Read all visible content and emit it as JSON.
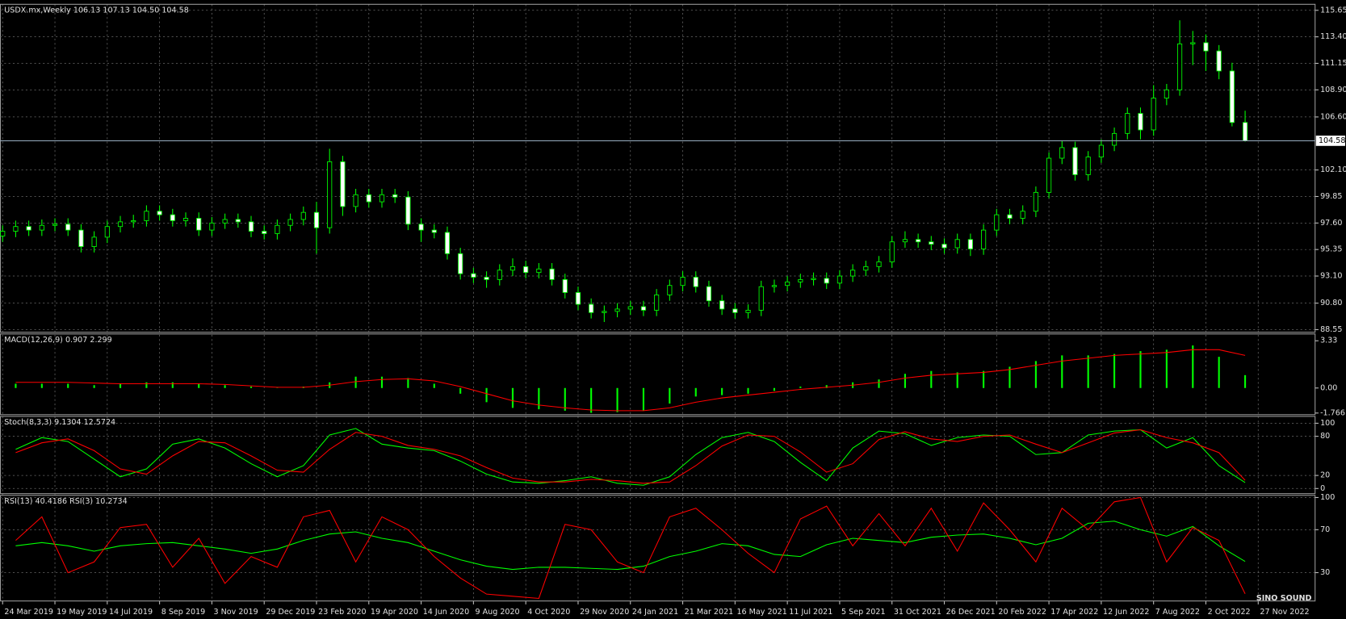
{
  "chart_data": [
    {
      "type": "candlestick",
      "title": "USDX.mx,Weekly 106.13 107.13 104.50 104.58",
      "x": [
        0,
        2,
        4,
        6,
        8,
        10,
        12,
        14,
        16,
        18,
        20,
        22,
        24,
        26,
        28,
        30,
        32,
        34,
        36,
        38,
        40,
        42,
        44,
        46,
        48,
        50,
        52,
        54,
        56,
        58,
        60,
        62,
        64,
        66,
        68,
        70,
        72,
        74,
        76,
        78,
        80,
        82,
        84,
        86,
        88,
        90,
        92,
        94,
        96,
        98,
        100,
        102,
        104,
        106,
        108,
        110,
        112,
        114,
        116,
        118,
        120,
        122,
        124,
        126,
        128,
        130,
        132,
        134,
        136,
        138,
        140,
        142,
        144,
        146,
        148,
        150,
        152,
        154,
        156,
        158,
        160,
        162,
        164,
        166,
        168,
        170,
        172,
        174,
        176,
        178,
        180,
        182,
        184,
        186,
        188,
        190
      ],
      "open": [
        96.5,
        96.9,
        97.3,
        97.0,
        97.4,
        97.5,
        97.0,
        95.6,
        96.4,
        97.3,
        97.7,
        97.8,
        98.6,
        98.3,
        97.8,
        98.0,
        97.0,
        97.6,
        97.9,
        97.7,
        96.9,
        96.7,
        97.4,
        97.9,
        98.5,
        97.2,
        102.8,
        99.0,
        100.0,
        99.4,
        100.0,
        99.8,
        97.5,
        97.0,
        96.8,
        95.0,
        93.3,
        93.0,
        92.8,
        93.6,
        93.9,
        93.4,
        93.7,
        92.8,
        91.7,
        90.7,
        90.0,
        90.1,
        90.3,
        90.5,
        90.2,
        91.5,
        92.3,
        93.0,
        92.2,
        91.0,
        90.3,
        90.0,
        90.2,
        92.2,
        92.3,
        92.6,
        92.8,
        92.9,
        92.5,
        93.1,
        93.6,
        93.9,
        94.3,
        96.0,
        96.2,
        96.0,
        95.8,
        95.5,
        96.2,
        95.4,
        97.0,
        98.3,
        98.0,
        98.6,
        100.2,
        103.1,
        104.0,
        101.7,
        103.2,
        104.2,
        105.2,
        106.9,
        105.5,
        108.2,
        108.9,
        112.8,
        112.9,
        112.2,
        110.5,
        106.13
      ],
      "high": [
        97.4,
        97.8,
        97.8,
        97.9,
        98.0,
        98.0,
        97.5,
        96.9,
        97.8,
        98.2,
        98.3,
        99.1,
        99.1,
        98.8,
        98.5,
        98.5,
        98.1,
        98.4,
        98.4,
        98.2,
        97.4,
        97.9,
        98.4,
        99.0,
        99.4,
        103.9,
        103.3,
        100.5,
        100.5,
        100.5,
        100.5,
        100.3,
        98.0,
        97.5,
        97.3,
        95.5,
        93.8,
        93.5,
        94.1,
        94.6,
        94.4,
        94.2,
        94.2,
        93.3,
        92.2,
        91.2,
        90.6,
        90.8,
        91.0,
        91.0,
        92.0,
        92.8,
        93.5,
        93.5,
        92.7,
        91.5,
        90.8,
        90.7,
        92.7,
        92.8,
        93.1,
        93.3,
        93.4,
        93.4,
        93.6,
        94.1,
        94.4,
        94.8,
        96.5,
        96.9,
        96.7,
        96.5,
        96.3,
        96.7,
        96.7,
        97.5,
        98.8,
        98.8,
        99.1,
        100.7,
        103.6,
        104.6,
        104.5,
        103.7,
        104.7,
        105.7,
        107.4,
        107.4,
        109.3,
        109.4,
        114.8,
        113.9,
        113.6,
        112.7,
        111.2,
        107.13
      ],
      "low": [
        96.0,
        96.4,
        96.5,
        96.5,
        96.9,
        96.5,
        95.1,
        95.1,
        95.9,
        96.8,
        97.2,
        97.3,
        97.8,
        97.3,
        97.3,
        96.5,
        96.5,
        97.1,
        97.2,
        96.4,
        96.2,
        96.2,
        96.9,
        97.4,
        95.0,
        96.7,
        98.2,
        98.5,
        98.9,
        98.9,
        99.3,
        97.0,
        96.0,
        96.3,
        94.5,
        92.8,
        92.5,
        92.1,
        92.3,
        93.1,
        92.9,
        92.9,
        92.3,
        91.2,
        90.2,
        89.5,
        89.2,
        89.6,
        89.8,
        89.7,
        89.7,
        91.0,
        91.8,
        91.7,
        90.5,
        89.8,
        89.5,
        89.5,
        89.7,
        91.7,
        91.8,
        92.1,
        92.3,
        92.0,
        92.0,
        92.6,
        93.1,
        93.4,
        93.8,
        95.5,
        95.5,
        95.3,
        95.0,
        95.0,
        94.8,
        94.9,
        96.5,
        97.5,
        97.5,
        98.1,
        99.7,
        102.6,
        101.2,
        101.2,
        102.7,
        103.7,
        104.7,
        104.7,
        105.0,
        107.6,
        108.4,
        111.0,
        110.5,
        109.8,
        105.8,
        104.5
      ],
      "close": [
        96.9,
        97.3,
        97.0,
        97.4,
        97.5,
        97.0,
        95.6,
        96.4,
        97.3,
        97.7,
        97.8,
        98.6,
        98.3,
        97.8,
        98.0,
        97.0,
        97.6,
        97.9,
        97.7,
        96.9,
        96.7,
        97.4,
        97.9,
        98.5,
        97.2,
        102.8,
        99.0,
        100.0,
        99.4,
        100.0,
        99.8,
        97.5,
        97.0,
        96.8,
        95.0,
        93.3,
        93.0,
        92.8,
        93.6,
        93.9,
        93.4,
        93.7,
        92.8,
        91.7,
        90.7,
        90.0,
        90.1,
        90.3,
        90.5,
        90.2,
        91.5,
        92.3,
        93.0,
        92.2,
        91.0,
        90.3,
        90.0,
        90.2,
        92.2,
        92.3,
        92.6,
        92.8,
        92.9,
        92.5,
        93.1,
        93.6,
        93.9,
        94.3,
        96.0,
        96.2,
        96.0,
        95.8,
        95.5,
        96.2,
        95.4,
        97.0,
        98.3,
        98.0,
        98.6,
        100.2,
        103.1,
        104.0,
        101.7,
        103.2,
        104.2,
        105.2,
        106.9,
        105.5,
        108.2,
        108.9,
        112.8,
        112.9,
        112.2,
        110.5,
        106.13,
        104.58
      ],
      "up_color": "#000000",
      "down_color": "#ffffff",
      "wick_color": "#00ff00",
      "xlim": [
        -0.4,
        200.7
      ],
      "ylim": [
        88.33,
        116.16
      ],
      "xticks": [
        {
          "value": 0,
          "label": "24 Mar 2019"
        },
        {
          "value": 8,
          "label": "19 May 2019"
        },
        {
          "value": 16,
          "label": "14 Jul 2019"
        },
        {
          "value": 24,
          "label": "8 Sep 2019"
        },
        {
          "value": 32,
          "label": "3 Nov 2019"
        },
        {
          "value": 40,
          "label": "29 Dec 2019"
        },
        {
          "value": 48,
          "label": "23 Feb 2020"
        },
        {
          "value": 56,
          "label": "19 Apr 2020"
        },
        {
          "value": 64,
          "label": "14 Jun 2020"
        },
        {
          "value": 72,
          "label": "9 Aug 2020"
        },
        {
          "value": 80,
          "label": "4 Oct 2020"
        },
        {
          "value": 88,
          "label": "29 Nov 2020"
        },
        {
          "value": 96,
          "label": "24 Jan 2021"
        },
        {
          "value": 104,
          "label": "21 Mar 2021"
        },
        {
          "value": 112,
          "label": "16 May 2021"
        },
        {
          "value": 120,
          "label": "11 Jul 2021"
        },
        {
          "value": 128,
          "label": "5 Sep 2021"
        },
        {
          "value": 136,
          "label": "31 Oct 2021"
        },
        {
          "value": 144,
          "label": "26 Dec 2021"
        },
        {
          "value": 152,
          "label": "20 Feb 2022"
        },
        {
          "value": 160,
          "label": "17 Apr 2022"
        },
        {
          "value": 168,
          "label": "12 Jun 2022"
        },
        {
          "value": 176,
          "label": "7 Aug 2022"
        },
        {
          "value": 184,
          "label": "2 Oct 2022"
        },
        {
          "value": 192,
          "label": "27 Nov 2022"
        }
      ],
      "yticks": [
        115.65,
        {
          "value": 113.4,
          "label": "113.40"
        },
        111.15,
        {
          "value": 108.9,
          "label": "108.90"
        },
        {
          "value": 106.6,
          "label": "106.60"
        },
        {
          "value": 102.1,
          "label": "102.10"
        },
        99.85,
        {
          "value": 97.6,
          "label": "97.60"
        },
        95.35,
        {
          "value": 93.1,
          "label": "93.10"
        },
        {
          "value": 90.8,
          "label": "90.80"
        },
        88.55
      ],
      "price_line": {
        "value": 104.58,
        "label": "104.58"
      },
      "grid": true
    },
    {
      "type": "macd",
      "title": "MACD(12,26,9) 0.907 2.299",
      "x": [
        2,
        6,
        10,
        14,
        18,
        22,
        26,
        30,
        34,
        38,
        42,
        46,
        50,
        54,
        58,
        62,
        66,
        70,
        74,
        78,
        82,
        86,
        90,
        94,
        98,
        102,
        106,
        110,
        114,
        118,
        122,
        126,
        130,
        134,
        138,
        142,
        146,
        150,
        154,
        158,
        162,
        166,
        170,
        174,
        178,
        182,
        186,
        190
      ],
      "series": [
        {
          "style": "histogram",
          "color": "#00ff00",
          "values": [
            0.3,
            0.3,
            0.3,
            0.2,
            0.3,
            0.4,
            0.4,
            0.3,
            0.2,
            0.1,
            0.02,
            0.1,
            0.4,
            0.8,
            0.8,
            0.7,
            0.3,
            -0.4,
            -1.0,
            -1.4,
            -1.5,
            -1.6,
            -1.75,
            -1.7,
            -1.6,
            -1.1,
            -0.6,
            -0.5,
            -0.4,
            -0.2,
            0.1,
            0.2,
            0.4,
            0.6,
            1.0,
            1.2,
            1.1,
            1.2,
            1.5,
            1.9,
            2.3,
            2.3,
            2.4,
            2.6,
            2.7,
            3.0,
            2.2,
            0.907
          ]
        },
        {
          "style": "line",
          "color": "#ff0000",
          "values": [
            0.4,
            0.4,
            0.4,
            0.35,
            0.3,
            0.3,
            0.3,
            0.3,
            0.25,
            0.15,
            0.05,
            0.05,
            0.2,
            0.45,
            0.6,
            0.65,
            0.5,
            0.1,
            -0.4,
            -0.9,
            -1.2,
            -1.4,
            -1.55,
            -1.6,
            -1.6,
            -1.4,
            -1.0,
            -0.7,
            -0.5,
            -0.3,
            -0.1,
            0.05,
            0.2,
            0.4,
            0.7,
            0.9,
            1.0,
            1.1,
            1.3,
            1.6,
            1.9,
            2.1,
            2.3,
            2.4,
            2.5,
            2.7,
            2.7,
            2.299
          ]
        }
      ],
      "xlim": [
        -0.4,
        200.7
      ],
      "ylim": [
        -1.88,
        3.81
      ],
      "yticks": [
        3.33,
        {
          "value": 0,
          "label": "0.00"
        },
        -1.766
      ],
      "grid": false
    },
    {
      "type": "line",
      "title": "Stoch(8,3,3) 9.1304 12.5724",
      "x": [
        2,
        6,
        10,
        14,
        18,
        22,
        26,
        30,
        34,
        38,
        42,
        46,
        50,
        54,
        58,
        62,
        66,
        70,
        74,
        78,
        82,
        86,
        90,
        94,
        98,
        102,
        106,
        110,
        114,
        118,
        122,
        126,
        130,
        134,
        138,
        142,
        146,
        150,
        154,
        158,
        162,
        166,
        170,
        174,
        178,
        182,
        186,
        190
      ],
      "series": [
        {
          "color": "#00ff00",
          "values": [
            60,
            78,
            72,
            45,
            18,
            30,
            68,
            76,
            62,
            38,
            18,
            35,
            82,
            92,
            68,
            62,
            58,
            42,
            22,
            10,
            8,
            12,
            18,
            8,
            5,
            18,
            52,
            78,
            86,
            72,
            40,
            12,
            62,
            88,
            84,
            66,
            78,
            82,
            80,
            52,
            55,
            82,
            88,
            90,
            62,
            78,
            35,
            9.1304
          ]
        },
        {
          "color": "#ff0000",
          "values": [
            55,
            70,
            76,
            58,
            30,
            22,
            50,
            72,
            70,
            50,
            28,
            25,
            60,
            86,
            80,
            66,
            60,
            50,
            32,
            16,
            10,
            10,
            14,
            12,
            8,
            10,
            35,
            65,
            82,
            80,
            56,
            25,
            38,
            75,
            87,
            76,
            72,
            80,
            82,
            68,
            55,
            70,
            85,
            90,
            78,
            70,
            55,
            12.5724
          ]
        }
      ],
      "xlim": [
        -0.4,
        200.7
      ],
      "ylim": [
        -7.9,
        110.5
      ],
      "yticks": [
        100,
        80,
        20,
        0
      ],
      "grid": true
    },
    {
      "type": "line",
      "title": "RSI(13) 40.4186  RSI(3) 10.2734",
      "x": [
        2,
        6,
        10,
        14,
        18,
        22,
        26,
        30,
        34,
        38,
        42,
        46,
        50,
        54,
        58,
        62,
        66,
        70,
        74,
        78,
        82,
        86,
        90,
        94,
        98,
        102,
        106,
        110,
        114,
        118,
        122,
        126,
        130,
        134,
        138,
        142,
        146,
        150,
        154,
        158,
        162,
        166,
        170,
        174,
        178,
        182,
        186,
        190
      ],
      "series": [
        {
          "color": "#00ff00",
          "values": [
            55,
            58,
            55,
            50,
            55,
            57,
            58,
            55,
            52,
            48,
            52,
            60,
            66,
            68,
            62,
            58,
            50,
            42,
            36,
            33,
            35,
            35,
            34,
            33,
            36,
            45,
            50,
            57,
            55,
            47,
            45,
            56,
            62,
            60,
            58,
            63,
            65,
            66,
            62,
            56,
            62,
            76,
            78,
            70,
            64,
            73,
            55,
            40.4186
          ]
        },
        {
          "color": "#ff0000",
          "values": [
            60,
            82,
            30,
            40,
            72,
            75,
            35,
            62,
            20,
            45,
            35,
            82,
            88,
            40,
            82,
            70,
            45,
            25,
            10,
            8,
            6,
            75,
            70,
            40,
            30,
            82,
            90,
            70,
            48,
            30,
            80,
            92,
            55,
            85,
            55,
            90,
            50,
            95,
            70,
            40,
            90,
            70,
            96,
            100,
            40,
            72,
            60,
            10.2734
          ]
        }
      ],
      "xlim": [
        -0.4,
        200.7
      ],
      "ylim": [
        3.6,
        102
      ],
      "yticks": [
        100,
        70,
        30
      ],
      "grid": true,
      "watermark": "SINO SOUND"
    }
  ]
}
